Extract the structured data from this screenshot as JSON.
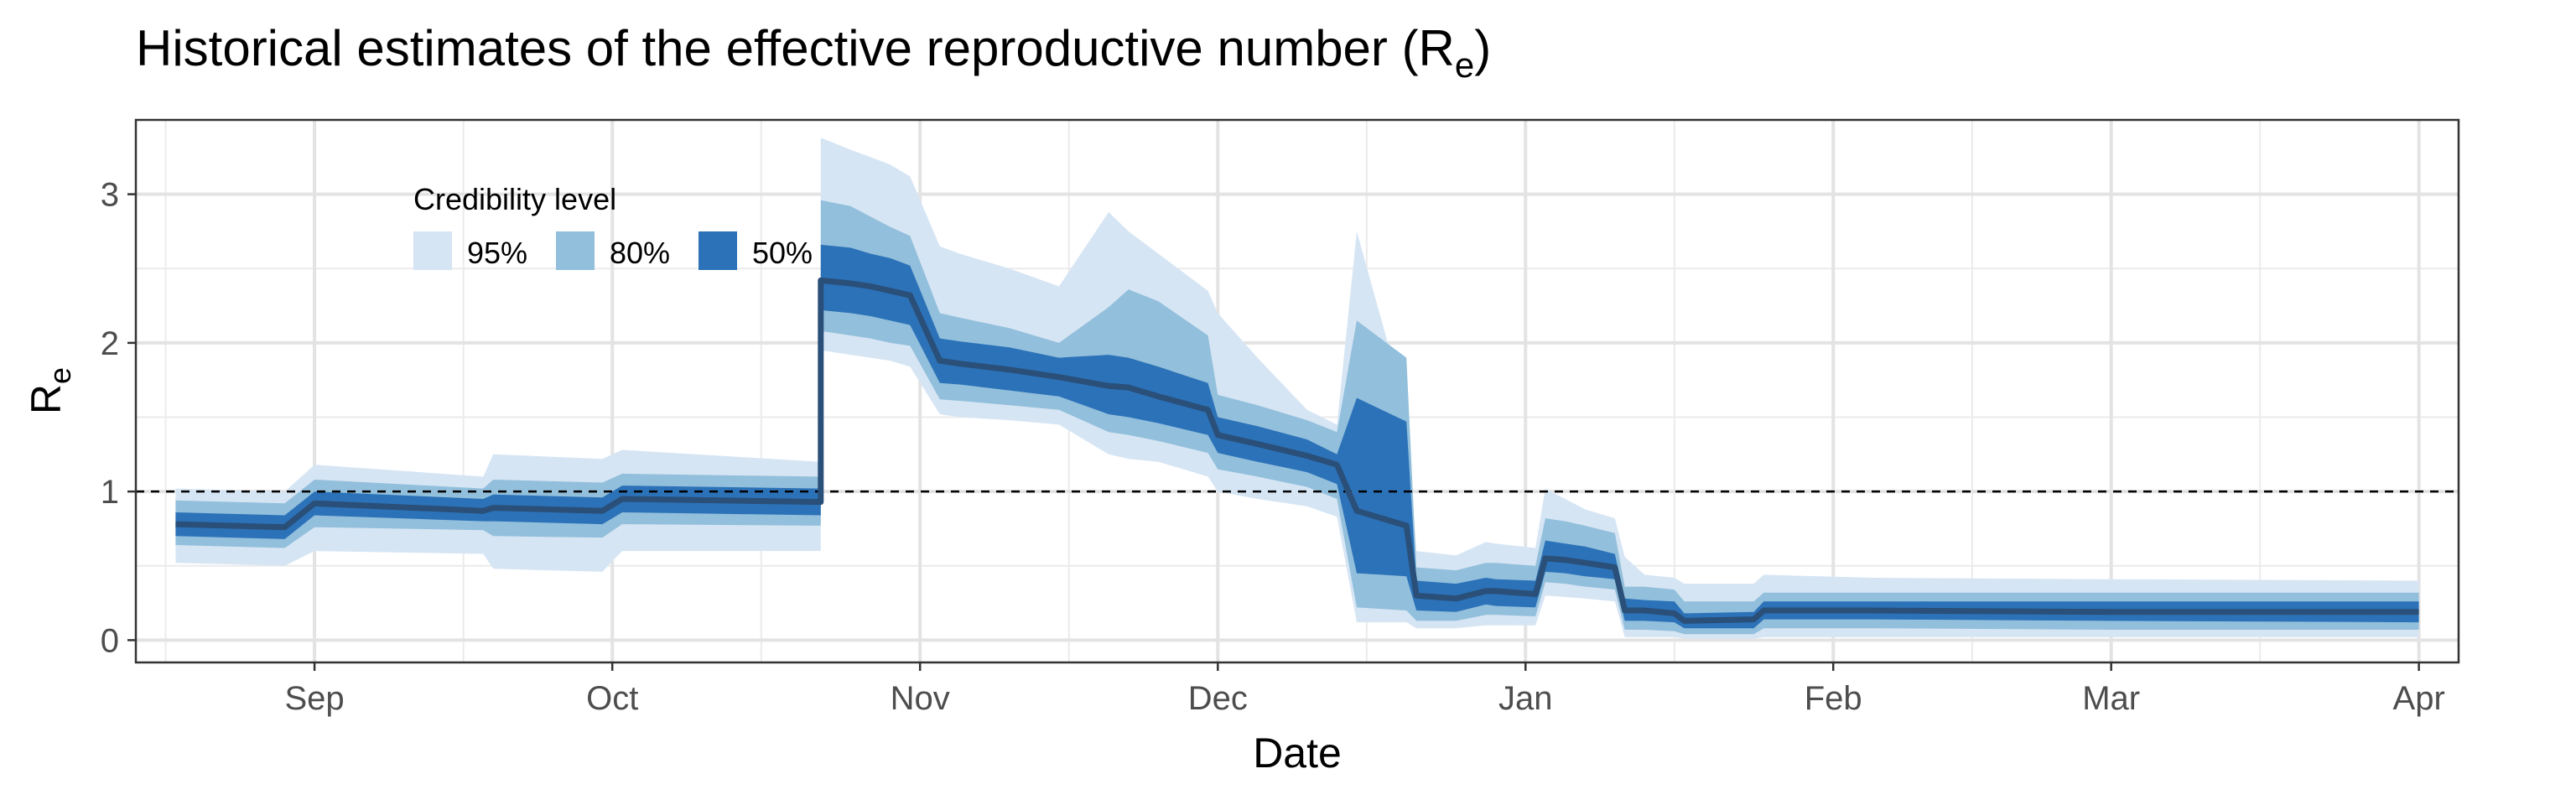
{
  "chart_data": {
    "type": "area",
    "title": "Historical estimates of the effective reproductive number (R",
    "title_subscript": "e",
    "title_suffix": ")",
    "xlabel": "Date",
    "ylabel": "R",
    "ylabel_subscript": "e",
    "x_ticks": [
      "Sep",
      "Oct",
      "Nov",
      "Dec",
      "Jan",
      "Feb",
      "Mar",
      "Apr"
    ],
    "x_tick_dates": [
      "2020-09-01",
      "2020-10-01",
      "2020-11-01",
      "2020-12-01",
      "2021-01-01",
      "2021-02-01",
      "2021-03-01",
      "2021-04-01"
    ],
    "y_ticks": [
      "0",
      "1",
      "2",
      "3"
    ],
    "xlim": [
      "2020-08-14",
      "2021-04-05"
    ],
    "ylim": [
      -0.15,
      3.5
    ],
    "grid": true,
    "reference_line": {
      "y": 1,
      "style": "dashed"
    },
    "legend": {
      "title": "Credibility level",
      "placement": "top-left",
      "entries": [
        {
          "label": "95%",
          "color": "#d6e5f4"
        },
        {
          "label": "80%",
          "color": "#92bfdb"
        },
        {
          "label": "50%",
          "color": "#2c72b8"
        }
      ]
    },
    "colors": {
      "median": "#2a4f78",
      "band95": "#d6e5f4",
      "band80": "#92bfdb",
      "band50": "#2c72b8"
    },
    "series": [
      {
        "x": [
          "2020-08-18",
          "2020-08-29",
          "2020-09-01",
          "2020-09-18",
          "2020-09-19",
          "2020-09-30",
          "2020-10-02",
          "2020-10-22",
          "2020-10-22",
          "2020-10-25",
          "2020-10-27",
          "2020-10-29",
          "2020-10-31",
          "2020-11-03",
          "2020-11-05",
          "2020-11-10",
          "2020-11-15",
          "2020-11-20",
          "2020-11-22",
          "2020-11-25",
          "2020-11-30",
          "2020-12-01",
          "2020-12-05",
          "2020-12-10",
          "2020-12-13",
          "2020-12-15",
          "2020-12-20",
          "2020-12-21",
          "2020-12-25",
          "2020-12-28",
          "2020-12-29",
          "2021-01-02",
          "2021-01-03",
          "2021-01-05",
          "2021-01-07",
          "2021-01-10",
          "2021-01-11",
          "2021-01-13",
          "2021-01-16",
          "2021-01-17",
          "2021-01-24",
          "2021-01-25",
          "2021-02-05",
          "2021-03-01",
          "2021-04-01"
        ],
        "median": [
          0.78,
          0.76,
          0.92,
          0.87,
          0.89,
          0.87,
          0.95,
          0.93,
          2.42,
          2.4,
          2.38,
          2.35,
          2.32,
          1.88,
          1.86,
          1.82,
          1.77,
          1.71,
          1.7,
          1.64,
          1.55,
          1.38,
          1.32,
          1.24,
          1.18,
          0.87,
          0.77,
          0.3,
          0.28,
          0.33,
          0.33,
          0.31,
          0.55,
          0.54,
          0.52,
          0.49,
          0.2,
          0.2,
          0.18,
          0.13,
          0.14,
          0.2,
          0.2,
          0.19,
          0.19
        ],
        "lo50": [
          0.7,
          0.68,
          0.84,
          0.8,
          0.8,
          0.78,
          0.86,
          0.84,
          2.22,
          2.2,
          2.18,
          2.15,
          2.12,
          1.73,
          1.72,
          1.68,
          1.64,
          1.52,
          1.5,
          1.46,
          1.38,
          1.26,
          1.2,
          1.13,
          1.05,
          0.45,
          0.43,
          0.2,
          0.19,
          0.24,
          0.23,
          0.22,
          0.46,
          0.45,
          0.43,
          0.41,
          0.13,
          0.13,
          0.12,
          0.08,
          0.08,
          0.14,
          0.14,
          0.13,
          0.12
        ],
        "hi50": [
          0.86,
          0.84,
          1.0,
          0.95,
          0.98,
          0.96,
          1.04,
          1.02,
          2.66,
          2.64,
          2.6,
          2.57,
          2.52,
          2.03,
          2.01,
          1.97,
          1.9,
          1.92,
          1.9,
          1.84,
          1.73,
          1.5,
          1.44,
          1.35,
          1.25,
          1.63,
          1.47,
          0.4,
          0.38,
          0.42,
          0.41,
          0.4,
          0.67,
          0.65,
          0.63,
          0.58,
          0.28,
          0.27,
          0.26,
          0.18,
          0.19,
          0.26,
          0.26,
          0.26,
          0.26
        ],
        "lo80": [
          0.64,
          0.62,
          0.76,
          0.74,
          0.7,
          0.69,
          0.78,
          0.77,
          2.08,
          2.05,
          2.03,
          2.0,
          1.98,
          1.62,
          1.61,
          1.58,
          1.55,
          1.4,
          1.38,
          1.34,
          1.26,
          1.15,
          1.1,
          1.03,
          0.95,
          0.22,
          0.2,
          0.13,
          0.13,
          0.17,
          0.17,
          0.16,
          0.39,
          0.38,
          0.36,
          0.34,
          0.07,
          0.07,
          0.06,
          0.04,
          0.04,
          0.08,
          0.08,
          0.07,
          0.07
        ],
        "hi80": [
          0.94,
          0.92,
          1.08,
          1.02,
          1.08,
          1.06,
          1.12,
          1.1,
          2.96,
          2.92,
          2.85,
          2.78,
          2.72,
          2.2,
          2.17,
          2.1,
          2.0,
          2.24,
          2.36,
          2.28,
          2.05,
          1.65,
          1.58,
          1.48,
          1.4,
          2.15,
          1.9,
          0.49,
          0.47,
          0.52,
          0.52,
          0.5,
          0.82,
          0.8,
          0.77,
          0.72,
          0.36,
          0.36,
          0.34,
          0.26,
          0.26,
          0.32,
          0.32,
          0.32,
          0.32
        ],
        "lo95": [
          0.52,
          0.5,
          0.6,
          0.58,
          0.48,
          0.46,
          0.6,
          0.6,
          1.95,
          1.92,
          1.9,
          1.88,
          1.84,
          1.52,
          1.5,
          1.48,
          1.45,
          1.25,
          1.22,
          1.2,
          1.1,
          1.0,
          0.95,
          0.9,
          0.83,
          0.12,
          0.12,
          0.08,
          0.08,
          0.1,
          0.1,
          0.1,
          0.3,
          0.29,
          0.28,
          0.26,
          0.02,
          0.02,
          0.02,
          0.01,
          0.01,
          0.02,
          0.02,
          0.02,
          0.02
        ],
        "hi95": [
          1.02,
          1.0,
          1.18,
          1.1,
          1.25,
          1.22,
          1.28,
          1.2,
          3.38,
          3.3,
          3.25,
          3.2,
          3.12,
          2.65,
          2.6,
          2.5,
          2.38,
          2.88,
          2.75,
          2.6,
          2.35,
          2.2,
          1.9,
          1.55,
          1.45,
          2.75,
          1.55,
          0.6,
          0.57,
          0.66,
          0.65,
          0.62,
          1.02,
          0.95,
          0.88,
          0.82,
          0.56,
          0.44,
          0.42,
          0.38,
          0.38,
          0.44,
          0.42,
          0.41,
          0.4
        ]
      }
    ]
  }
}
